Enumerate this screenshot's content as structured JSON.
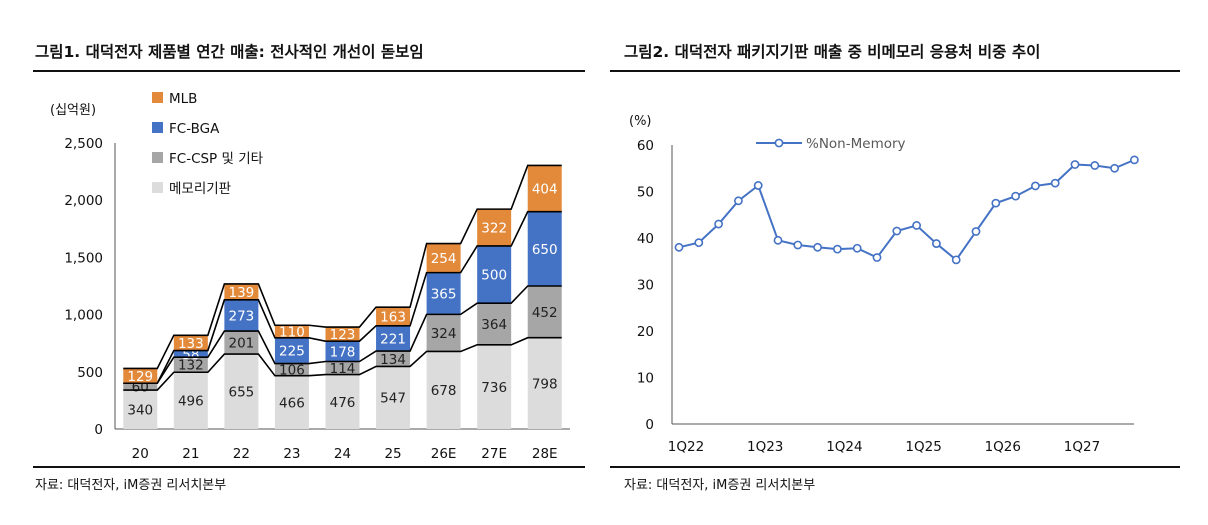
{
  "figures": [
    {
      "title": "그림1. 대덕전자 제품별 연간 매출: 전사적인 개선이 돋보임",
      "source": "자료: 대덕전자, iM증권 리서치본부"
    },
    {
      "title": "그림2. 대덕전자 패키지기판 매출 중 비메모리 응용처 비중 추이",
      "source": "자료: 대덕전자, iM증권 리서치본부"
    }
  ],
  "chart_data": [
    {
      "type": "bar",
      "stacked": true,
      "unit_label": "(십억원)",
      "categories": [
        "20",
        "21",
        "22",
        "23",
        "24",
        "25",
        "26E",
        "27E",
        "28E"
      ],
      "series": [
        {
          "name": "메모리기판",
          "color": "#dcdcdc",
          "label_color": "#222222",
          "values": [
            340,
            496,
            655,
            466,
            476,
            547,
            678,
            736,
            798
          ]
        },
        {
          "name": "FC-CSP 및 기타",
          "color": "#a6a6a6",
          "label_color": "#222222",
          "values": [
            60,
            132,
            201,
            106,
            114,
            134,
            324,
            364,
            452
          ]
        },
        {
          "name": "FC-BGA",
          "color": "#4472c4",
          "label_color": "#ffffff",
          "values": [
            0,
            58,
            273,
            225,
            178,
            221,
            365,
            500,
            650
          ]
        },
        {
          "name": "MLB",
          "color": "#e3893a",
          "label_color": "#ffffff",
          "values": [
            129,
            133,
            139,
            110,
            123,
            163,
            254,
            322,
            404
          ]
        }
      ],
      "ylim": [
        0,
        2500
      ],
      "yticks": [
        "0",
        "500",
        "1,000",
        "1,500",
        "2,000",
        "2,500"
      ],
      "legend": "top-left, listed MLB, FC-BGA, FC-CSP 및 기타, 메모리기판",
      "grid": false,
      "connector_lines": true
    },
    {
      "type": "line",
      "unit_label": "(%)",
      "series": [
        {
          "name": "%Non-Memory",
          "color": "#4472c4",
          "values": [
            38,
            39,
            43,
            48,
            51.3,
            39.5,
            38.5,
            38,
            37.6,
            37.8,
            35.8,
            41.5,
            42.7,
            38.8,
            35.3,
            41.4,
            47.5,
            49,
            51.2,
            51.8,
            55.8,
            55.6,
            55,
            56.8
          ]
        }
      ],
      "x_labels": [
        "1Q22",
        "1Q23",
        "1Q24",
        "1Q25",
        "1Q26",
        "1Q27"
      ],
      "x_label_every": 4,
      "ylim": [
        0,
        60
      ],
      "yticks": [
        "0",
        "10",
        "20",
        "30",
        "40",
        "50",
        "60"
      ],
      "legend": "top-left",
      "grid": false
    }
  ]
}
